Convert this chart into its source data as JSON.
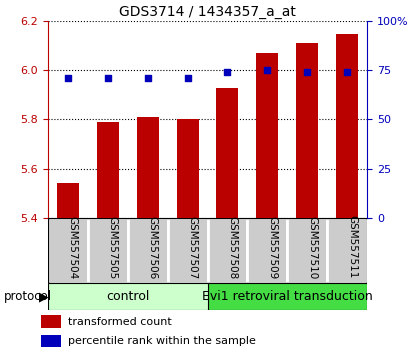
{
  "title": "GDS3714 / 1434357_a_at",
  "samples": [
    "GSM557504",
    "GSM557505",
    "GSM557506",
    "GSM557507",
    "GSM557508",
    "GSM557509",
    "GSM557510",
    "GSM557511"
  ],
  "bar_values": [
    5.54,
    5.79,
    5.81,
    5.8,
    5.93,
    6.07,
    6.11,
    6.15
  ],
  "percentile_values": [
    71,
    71,
    71,
    71,
    74,
    75,
    74,
    74
  ],
  "ylim_left": [
    5.4,
    6.2
  ],
  "ylim_right": [
    0,
    100
  ],
  "yticks_left": [
    5.4,
    5.6,
    5.8,
    6.0,
    6.2
  ],
  "yticks_right": [
    0,
    25,
    50,
    75,
    100
  ],
  "bar_color": "#bb0000",
  "percentile_color": "#0000bb",
  "grid_color": "black",
  "bg_color": "#ffffff",
  "control_label": "control",
  "treatment_label": "Evi1 retroviral transduction",
  "control_bg": "#ccffcc",
  "treatment_bg": "#44dd44",
  "sample_bg": "#cccccc",
  "protocol_label": "protocol",
  "legend_bar_label": "transformed count",
  "legend_pct_label": "percentile rank within the sample",
  "control_count": 4,
  "treatment_count": 4,
  "figsize": [
    4.15,
    3.54
  ],
  "dpi": 100
}
